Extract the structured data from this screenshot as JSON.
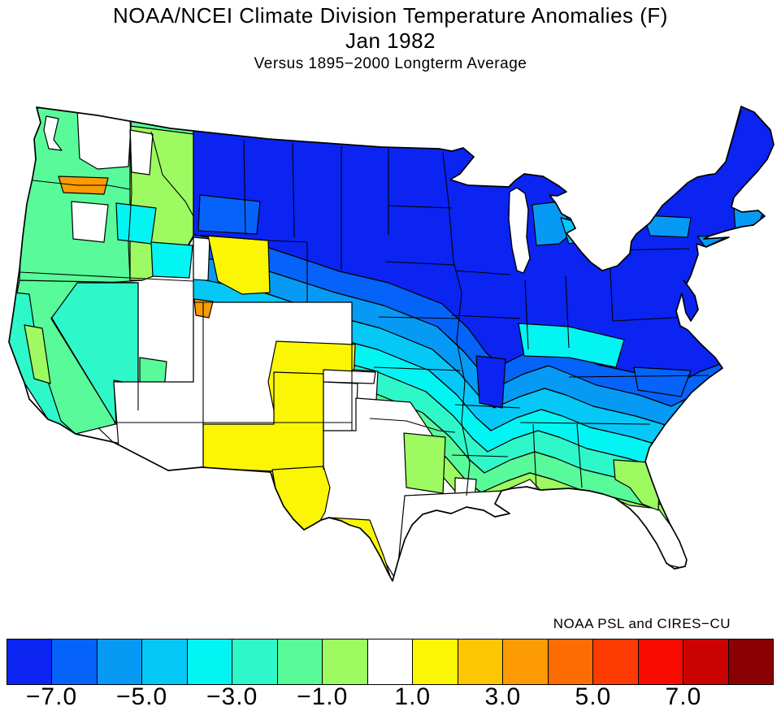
{
  "titles": {
    "line1": "NOAA/NCEI Climate Division Temperature Anomalies (F)",
    "line2": "Jan 1982",
    "line3": "Versus 1895−2000 Longterm Average"
  },
  "credit": "NOAA PSL and CIRES−CU",
  "palette": {
    "blue_dark": "#0b24f2",
    "blue": "#0563fa",
    "blue_dodger": "#079af5",
    "blue_sky": "#06c8f7",
    "cyan": "#03f5f3",
    "turquoise": "#2ef8c9",
    "green": "#58fa9a",
    "green_light": "#9dfa61",
    "white": "#ffffff",
    "yellow": "#fbf603",
    "gold": "#fcc602",
    "orange": "#fc9b03",
    "orange_dark": "#fd6c02",
    "red_orange": "#fd3a02",
    "red": "#f90b02",
    "red_dark": "#ca0302",
    "maroon": "#8b0101"
  },
  "colorbar": {
    "tick_labels": [
      "−7.0",
      "−5.0",
      "−3.0",
      "−1.0",
      "1.0",
      "3.0",
      "5.0",
      "7.0"
    ],
    "segments": [
      "#0b24f2",
      "#0563fa",
      "#079af5",
      "#06c8f7",
      "#03f5f3",
      "#2ef8c9",
      "#58fa9a",
      "#9dfa61",
      "#ffffff",
      "#fbf603",
      "#fcc602",
      "#fc9b03",
      "#fd6c02",
      "#fd3a02",
      "#f90b02",
      "#ca0302",
      "#8b0101"
    ],
    "boundaries": [
      -8,
      -7,
      -6,
      -5,
      -4,
      -3,
      -2,
      -1,
      0,
      1,
      2,
      3,
      4,
      5,
      6,
      7,
      8
    ]
  },
  "chart_data": {
    "type": "choropleth-map",
    "title": "NOAA/NCEI Climate Division Temperature Anomalies (F)",
    "period": "Jan 1982",
    "baseline": "Versus 1895−2000 Longterm Average",
    "units": "degrees Fahrenheit anomaly",
    "geography": "Contiguous United States climate divisions",
    "legend_tick_values": [
      -7.0,
      -5.0,
      -3.0,
      -1.0,
      1.0,
      3.0,
      5.0,
      7.0
    ],
    "colorbar_boundaries": [
      -8,
      -7,
      -6,
      -5,
      -4,
      -3,
      -2,
      -1,
      0,
      1,
      2,
      3,
      4,
      5,
      6,
      7,
      8
    ],
    "regions": [
      {
        "area": "Montana / Northern Plains (ND, SD, MN)",
        "anomaly_f": "−8 to −7",
        "color": "#0b24f2"
      },
      {
        "area": "Upper Midwest (WI, IA, IL, MO north)",
        "anomaly_f": "−8 to −7",
        "color": "#0b24f2"
      },
      {
        "area": "Great Lakes / Ohio Valley (MI, IN, OH)",
        "anomaly_f": "−8 to −6",
        "color": "#0b24f2"
      },
      {
        "area": "Northeast (PA, NY, New England)",
        "anomaly_f": "−8 to −6",
        "color": "#0b24f2"
      },
      {
        "area": "Central Plains (NE, KS)",
        "anomaly_f": "−6 to −3",
        "color": "#079af5"
      },
      {
        "area": "Kentucky / Tennessee / Mid-South",
        "anomaly_f": "−5 to −3",
        "color": "#03f5f3"
      },
      {
        "area": "Carolinas and inland Southeast",
        "anomaly_f": "−4 to −2",
        "color": "#2ef8c9"
      },
      {
        "area": "Deep South (AR, LA, MS, AL, GA, SC)",
        "anomaly_f": "−3 to −1",
        "color": "#58fa9a"
      },
      {
        "area": "Gulf Coast strip and Florida peninsula",
        "anomaly_f": "0 to +1",
        "color": "#ffffff"
      },
      {
        "area": "Pacific Northwest (WA, OR, ID)",
        "anomaly_f": "−3 to −1",
        "color": "#58fa9a"
      },
      {
        "area": "Columbia Basin spot (N Oregon)",
        "anomaly_f": "+3 to +4",
        "color": "#fc9b03"
      },
      {
        "area": "California coast / Nevada Great Basin",
        "anomaly_f": "−3 to −1",
        "color": "#2ef8c9"
      },
      {
        "area": "Utah / Arizona / W Colorado",
        "anomaly_f": "−1 to +1",
        "color": "#ffffff"
      },
      {
        "area": "NE Utah spot",
        "anomaly_f": "+3 to +4",
        "color": "#fc9b03"
      },
      {
        "area": "SW Wyoming",
        "anomaly_f": "+1 to +2",
        "color": "#fbf603"
      },
      {
        "area": "E Colorado / New Mexico / West and South Texas",
        "anomaly_f": "+1 to +2",
        "color": "#fbf603"
      }
    ]
  }
}
